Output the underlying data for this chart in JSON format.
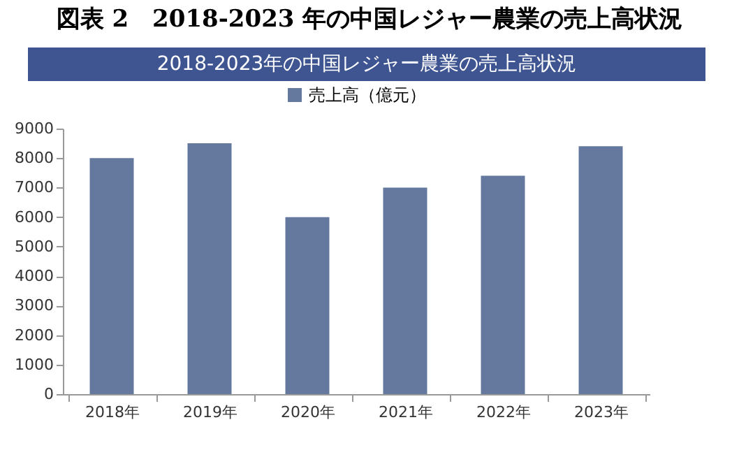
{
  "chart_data": {
    "type": "bar",
    "title": "図表 2　2018-2023 年の中国レジャー農業の売上高状況",
    "subtitle": "2018-2023年の中国レジャー農業の売上高状況",
    "categories": [
      "2018年",
      "2019年",
      "2020年",
      "2021年",
      "2022年",
      "2023年"
    ],
    "series": [
      {
        "name": "売上高（億元）",
        "color": "#65799e",
        "values": [
          8000,
          8500,
          6000,
          7000,
          7400,
          8400
        ]
      }
    ],
    "ylim": [
      0,
      9000
    ],
    "yticks": [
      0,
      1000,
      2000,
      3000,
      4000,
      5000,
      6000,
      7000,
      8000,
      9000
    ],
    "grid": false,
    "legend": "top"
  }
}
